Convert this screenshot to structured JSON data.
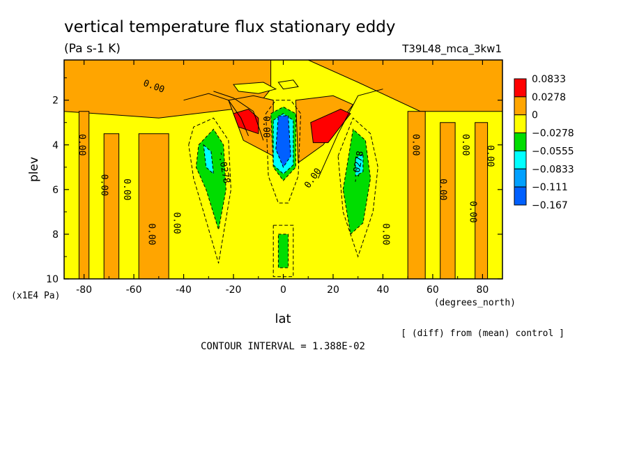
{
  "chart_data": {
    "type": "contour",
    "title": "vertical temperature flux stationary eddy",
    "units": "(Pa s-1 K)",
    "run_label": "T39L48_mca_3kw1",
    "xlabel": "lat",
    "x_units": "(degrees_north)",
    "ylabel": "plev",
    "y_units": "(x1E4 Pa)",
    "footer": "CONTOUR INTERVAL = 1.388E-02",
    "note": "[ (diff) from (mean) control ]",
    "xlim": [
      -88,
      88
    ],
    "ylim": [
      10,
      0.2
    ],
    "x_ticks": [
      -80,
      -60,
      -40,
      -20,
      0,
      20,
      40,
      60,
      80
    ],
    "y_ticks": [
      2,
      4,
      6,
      8,
      10
    ],
    "legend": {
      "placement": "right",
      "levels": [
        "0.0833",
        "0.0278",
        "0",
        "−0.0278",
        "−0.0555",
        "−0.0833",
        "−0.111",
        "−0.167"
      ],
      "colors": [
        "#ff0000",
        "#ffa500",
        "#ffff00",
        "#00dd00",
        "#00ffff",
        "#00a0ff",
        "#0060ff"
      ]
    },
    "contour_labels": [
      {
        "text": "0.00",
        "x": -52,
        "y": 1.4,
        "rot": 20
      },
      {
        "text": "0.00",
        "x": -81,
        "y": 4.0,
        "rot": 90
      },
      {
        "text": "0.00",
        "x": -72,
        "y": 5.8,
        "rot": 90
      },
      {
        "text": "0.00",
        "x": -63,
        "y": 6.0,
        "rot": 90
      },
      {
        "text": "0.00",
        "x": -53,
        "y": 8.0,
        "rot": 90
      },
      {
        "text": "0.00",
        "x": -43,
        "y": 7.5,
        "rot": 90
      },
      {
        "text": "0.00",
        "x": -7,
        "y": 3.2,
        "rot": 90
      },
      {
        "text": "-.0278",
        "x": -24,
        "y": 5.0,
        "rot": 80
      },
      {
        "text": "0.00",
        "x": 12,
        "y": 5.5,
        "rot": -55
      },
      {
        "text": "-.0278",
        "x": 30,
        "y": 5.0,
        "rot": -80
      },
      {
        "text": "0.00",
        "x": 41,
        "y": 8.0,
        "rot": 90
      },
      {
        "text": "0.00",
        "x": 53,
        "y": 4.0,
        "rot": 90
      },
      {
        "text": "0.00",
        "x": 64,
        "y": 6.0,
        "rot": 90
      },
      {
        "text": "0.00",
        "x": 73,
        "y": 4.0,
        "rot": 90
      },
      {
        "text": "0.00",
        "x": 76,
        "y": 7.0,
        "rot": 90
      },
      {
        "text": "0.00",
        "x": 83,
        "y": 4.5,
        "rot": 90
      }
    ],
    "regions": [
      {
        "level": "orange",
        "x": [
          -88,
          -88,
          -50,
          -20,
          -10,
          -5,
          -5,
          10,
          30,
          55,
          88,
          88
        ],
        "y": [
          0.2,
          2.5,
          2.8,
          2.4,
          2.2,
          1.5,
          0.2,
          0.2,
          1.2,
          2.5,
          2.5,
          0.2
        ]
      },
      {
        "level": "orange",
        "x": [
          -82,
          -82,
          -78,
          -78
        ],
        "y": [
          2.5,
          10,
          10,
          2.5
        ]
      },
      {
        "level": "orange",
        "x": [
          -72,
          -72,
          -66,
          -66
        ],
        "y": [
          3.5,
          10,
          10,
          3.5
        ]
      },
      {
        "level": "orange",
        "x": [
          -58,
          -58,
          -46,
          -46
        ],
        "y": [
          3.5,
          10,
          10,
          3.5
        ]
      },
      {
        "level": "orange",
        "x": [
          50,
          50,
          57,
          57
        ],
        "y": [
          2.5,
          10,
          10,
          2.5
        ]
      },
      {
        "level": "orange",
        "x": [
          63,
          63,
          69,
          69
        ],
        "y": [
          3.0,
          10,
          10,
          3.0
        ]
      },
      {
        "level": "orange",
        "x": [
          77,
          77,
          82,
          82
        ],
        "y": [
          3.0,
          10,
          10,
          3.0
        ]
      },
      {
        "level": "orange",
        "x": [
          -22,
          -12,
          -4,
          -4,
          -16
        ],
        "y": [
          2.0,
          1.8,
          2.0,
          4.5,
          3.8
        ]
      },
      {
        "level": "orange",
        "x": [
          5,
          20,
          28,
          16,
          6
        ],
        "y": [
          2.0,
          1.8,
          2.2,
          4.0,
          4.8
        ]
      },
      {
        "level": "yellow",
        "x": [
          -20,
          -8,
          -3,
          -10,
          -18
        ],
        "y": [
          1.3,
          1.2,
          1.5,
          1.7,
          1.6
        ]
      },
      {
        "level": "yellow",
        "x": [
          -2,
          4,
          6,
          0
        ],
        "y": [
          1.2,
          1.1,
          1.4,
          1.5
        ]
      },
      {
        "level": "red",
        "x": [
          -20,
          -14,
          -10,
          -10,
          -18
        ],
        "y": [
          2.6,
          2.4,
          2.8,
          3.5,
          3.2
        ]
      },
      {
        "level": "red",
        "x": [
          11,
          23,
          27,
          18,
          12
        ],
        "y": [
          3.0,
          2.4,
          2.6,
          3.9,
          3.9
        ]
      },
      {
        "level": "green",
        "x": [
          -34,
          -28,
          -24,
          -23,
          -26,
          -31,
          -35
        ],
        "y": [
          4.0,
          3.3,
          4.0,
          6.0,
          7.8,
          6.0,
          5.0
        ]
      },
      {
        "level": "cyan",
        "x": [
          -32,
          -29,
          -28,
          -31
        ],
        "y": [
          4.0,
          4.3,
          5.3,
          5.0
        ]
      },
      {
        "level": "green",
        "x": [
          24,
          28,
          33,
          35,
          32,
          27
        ],
        "y": [
          6.0,
          3.3,
          3.8,
          5.5,
          7.5,
          8.0
        ]
      },
      {
        "level": "cyan",
        "x": [
          29,
          32,
          32,
          29
        ],
        "y": [
          4.6,
          4.4,
          5.2,
          5.4
        ]
      },
      {
        "level": "green",
        "x": [
          -5,
          0,
          5,
          5,
          0,
          -4
        ],
        "y": [
          2.6,
          2.3,
          2.6,
          5.0,
          5.6,
          5.0
        ]
      },
      {
        "level": "cyan",
        "x": [
          -4,
          0,
          4,
          4,
          0,
          -4
        ],
        "y": [
          2.9,
          2.6,
          2.9,
          4.9,
          5.3,
          4.9
        ]
      },
      {
        "level": "blue",
        "x": [
          -2,
          2,
          3,
          0,
          -3
        ],
        "y": [
          2.7,
          2.7,
          4.5,
          5.0,
          4.2
        ]
      },
      {
        "level": "green",
        "x": [
          -2,
          2,
          2,
          -2
        ],
        "y": [
          8.0,
          8.0,
          9.5,
          9.5
        ]
      }
    ],
    "contours": [
      {
        "dash": false,
        "x": [
          -40,
          -30,
          -22,
          -17,
          -14
        ],
        "y": [
          2.0,
          1.7,
          2.0,
          2.8,
          3.6
        ]
      },
      {
        "dash": false,
        "x": [
          14,
          22,
          30,
          40
        ],
        "y": [
          5.5,
          3.5,
          1.8,
          1.5
        ]
      },
      {
        "dash": false,
        "x": [
          -28,
          -20,
          -12,
          -8
        ],
        "y": [
          1.6,
          1.9,
          2.5,
          3.8
        ]
      },
      {
        "dash": true,
        "x": [
          -38,
          -36,
          -28,
          -22,
          -21,
          -26,
          -32,
          -36,
          -38
        ],
        "y": [
          4.0,
          3.2,
          2.8,
          3.8,
          6.0,
          9.3,
          7.0,
          5.5,
          4.0
        ]
      },
      {
        "dash": true,
        "x": [
          22,
          28,
          35,
          38,
          36,
          30,
          24,
          22
        ],
        "y": [
          4.5,
          2.8,
          3.5,
          5.0,
          7.0,
          9.0,
          7.0,
          4.5
        ]
      },
      {
        "dash": true,
        "x": [
          -7,
          -3,
          3,
          7,
          6,
          2,
          -2,
          -6,
          -7
        ],
        "y": [
          2.6,
          2.0,
          2.0,
          2.6,
          5.4,
          6.6,
          6.6,
          5.4,
          2.6
        ]
      },
      {
        "dash": true,
        "x": [
          -4,
          4,
          4,
          -4,
          -4
        ],
        "y": [
          7.6,
          7.6,
          9.9,
          9.9,
          7.6
        ]
      }
    ]
  }
}
